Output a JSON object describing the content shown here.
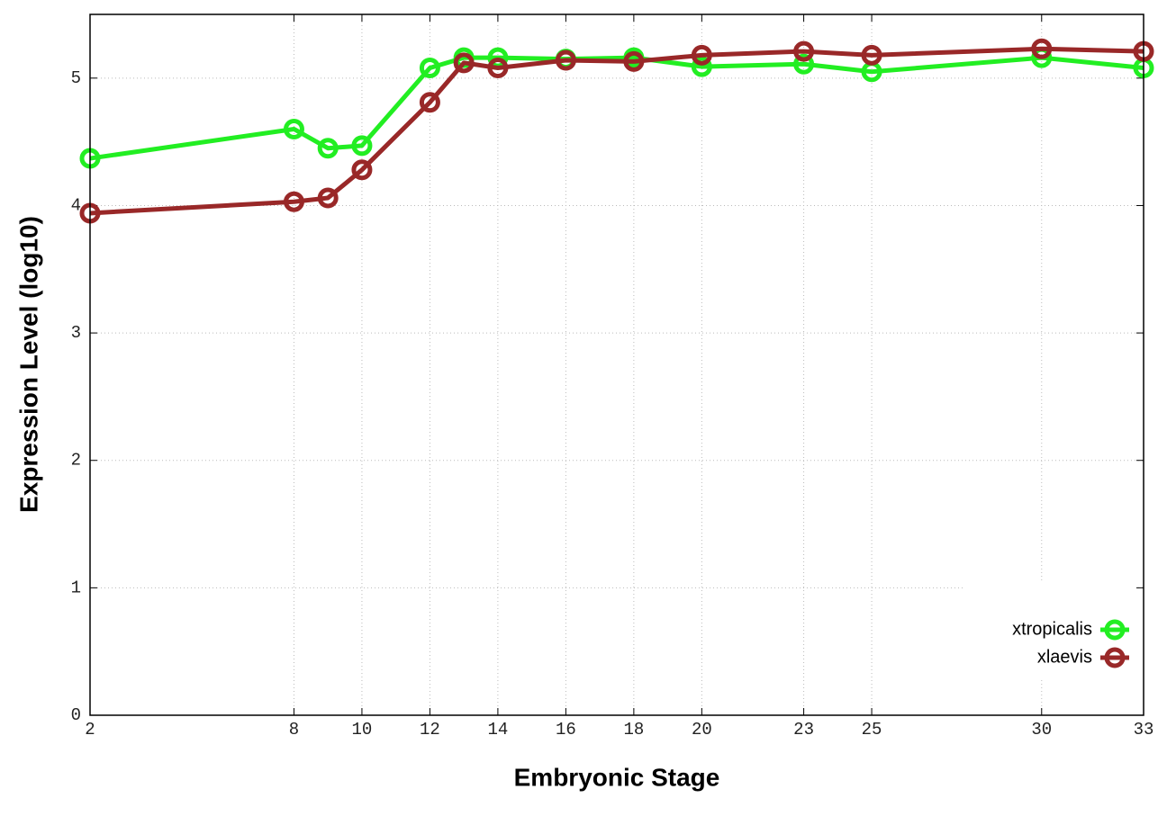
{
  "chart_data": {
    "type": "line",
    "x_label": "Embryonic Stage",
    "y_label": "Expression Level (log10)",
    "x": [
      2,
      8,
      9,
      10,
      12,
      13,
      14,
      16,
      18,
      20,
      23,
      25,
      30,
      33
    ],
    "series": [
      {
        "name": "xtropicalis",
        "color": "#22ee22",
        "values": [
          4.37,
          4.6,
          4.45,
          4.47,
          5.08,
          5.16,
          5.16,
          5.15,
          5.16,
          5.09,
          5.11,
          5.05,
          5.16,
          5.08
        ]
      },
      {
        "name": "xlaevis",
        "color": "#992828",
        "values": [
          3.94,
          4.03,
          4.06,
          4.28,
          4.81,
          5.12,
          5.08,
          5.14,
          5.13,
          5.18,
          5.21,
          5.18,
          5.23,
          5.21
        ]
      }
    ],
    "xlim": [
      2,
      33
    ],
    "ylim": [
      0,
      5.5
    ],
    "xticks": [
      2,
      8,
      10,
      12,
      14,
      16,
      18,
      20,
      23,
      25,
      30,
      33
    ],
    "yticks": [
      0,
      1,
      2,
      3,
      4,
      5
    ],
    "grid": true,
    "legend": "lower right"
  }
}
